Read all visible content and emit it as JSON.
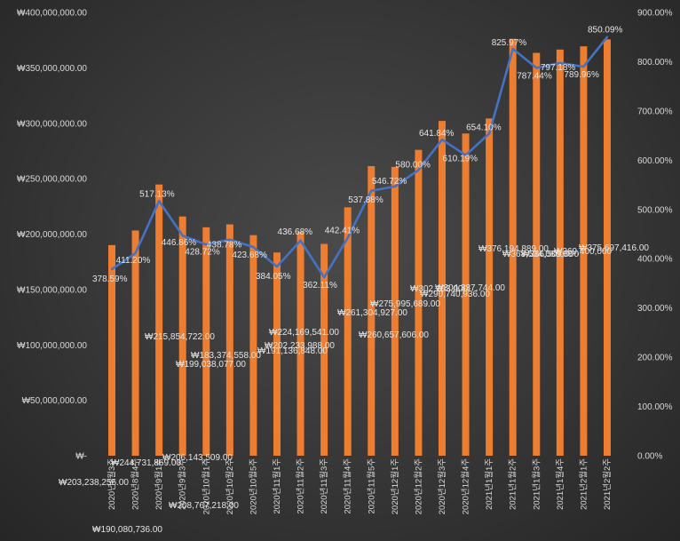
{
  "chart_data": {
    "type": "bar+line",
    "categories": [
      "2020년8월3주",
      "2020년8월4주",
      "2020년9월1주",
      "2020년9월3주",
      "2020년10월1주",
      "2020년10월2주",
      "2020년10월5주",
      "2020년11월1주",
      "2020년11월2주",
      "2020년11월3주",
      "2020년11월4주",
      "2020년11월5주",
      "2020년12월1주",
      "2020년12월2주",
      "2020년12월3주",
      "2020년12월4주",
      "2021년1월1주",
      "2021년1월2주",
      "2021년1월3주",
      "2021년1월4주",
      "2021년2월1주",
      "2021년2월2주"
    ],
    "bar_series": {
      "values": [
        190080736,
        203238256,
        244731869,
        215854722,
        206143509,
        208767218,
        199038077,
        183374558,
        202233988,
        191136848,
        224169541,
        261304927,
        260657606,
        275995689,
        302103000,
        290740936,
        304337744,
        376194889,
        363534088,
        366509000,
        369400000,
        375697416
      ],
      "labels": [
        "₩190,080,736.00",
        "₩203,238,256.00",
        "₩244,731,869.00",
        "₩215,854,722.00",
        "₩206,143,509.00",
        "₩208,767,218.00",
        "₩199,038,077.00",
        "₩183,374,558.00",
        "₩202,233,988.00",
        "₩191,136,848.00",
        "₩224,169,541.00",
        "₩261,304,927.00",
        "₩260,657,606.00",
        "₩275,995,689.00",
        "₩302,103,000",
        "₩290,740,936.00",
        "₩304,337,744.00",
        "₩376,194,889.00",
        "₩363,534,088.00",
        "₩366,509,000",
        "₩369,400,000",
        "₩375,697,416.00"
      ],
      "color": "#ED7D31"
    },
    "line_series": {
      "values": [
        378.59,
        411.2,
        517.13,
        446.86,
        428.72,
        438.78,
        423.68,
        384.05,
        436.68,
        362.11,
        442.41,
        537.88,
        546.72,
        580.0,
        641.84,
        610.19,
        654.1,
        825.97,
        787.44,
        797.18,
        789.96,
        850.09
      ],
      "labels": [
        "378.59%",
        "411.20%",
        "517.13%",
        "446.86%",
        "428.72%",
        "438.78%",
        "423.68%",
        "384.05%",
        "436.68%",
        "362.11%",
        "442.41%",
        "537.88%",
        "546.72%",
        "580.00%",
        "641.84%",
        "610.19%",
        "654.10%",
        "825.97%",
        "787.44%",
        "797.18%",
        "789.96%",
        "850.09%"
      ],
      "color": "#4472C4"
    },
    "y_left": {
      "min": 0,
      "max": 400000000,
      "ticks": [
        0,
        50000000,
        100000000,
        150000000,
        200000000,
        250000000,
        300000000,
        350000000,
        400000000
      ],
      "tick_labels": [
        "₩-",
        "₩50,000,000.00",
        "₩100,000,000.00",
        "₩150,000,000.00",
        "₩200,000,000.00",
        "₩250,000,000.00",
        "₩300,000,000.00",
        "₩350,000,000.00",
        "₩400,000,000.00"
      ]
    },
    "y_right": {
      "min": 0,
      "max": 900,
      "ticks": [
        0,
        100,
        200,
        300,
        400,
        500,
        600,
        700,
        800,
        900
      ],
      "tick_labels": [
        "0.00%",
        "100.00%",
        "200.00%",
        "300.00%",
        "400.00%",
        "500.00%",
        "600.00%",
        "700.00%",
        "800.00%",
        "900.00%"
      ]
    },
    "grid": false,
    "legend": "none"
  }
}
